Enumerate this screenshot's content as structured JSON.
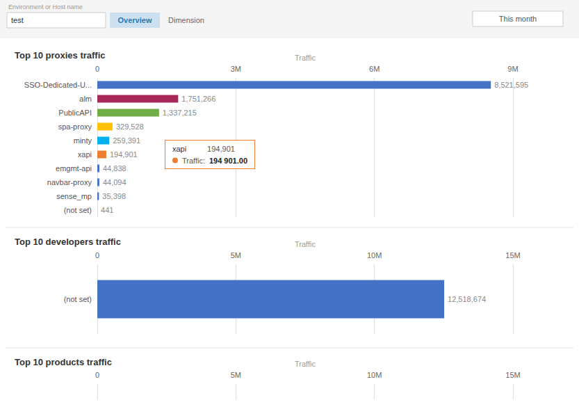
{
  "annotations": [
    "Environment or Host name",
    "test",
    "Overview",
    "Dimension",
    "This month"
  ],
  "chart_data": [
    {
      "type": "bar",
      "orientation": "horizontal",
      "title": "Top 10 proxies traffic",
      "xlabel": "Traffic",
      "categories": [
        "SSO-Dedicated-U...",
        "alm",
        "PublicAPI",
        "spa-proxy",
        "minty",
        "xapi",
        "emgmt-api",
        "navbar-proxy",
        "sense_mp",
        "(not set)"
      ],
      "values": [
        8521595,
        1751266,
        1337215,
        329528,
        259391,
        194901,
        44838,
        44094,
        35398,
        441
      ],
      "value_labels": [
        "8,521,595",
        "1,751,266",
        "1,337,215",
        "329,528",
        "259,391",
        "194,901",
        "44,838",
        "44,094",
        "35,398",
        "441"
      ],
      "data_labels": true,
      "colors": [
        "#4472c4",
        "#a8285a",
        "#70ad47",
        "#ffc000",
        "#00b0f0",
        "#ed7d31",
        "#4472c4",
        "#4472c4",
        "#4472c4",
        "#4472c4"
      ],
      "xlim": [
        0,
        9000000
      ],
      "xticks": [
        0,
        {
          "value": 3000000,
          "label": "3M"
        },
        {
          "value": 6000000,
          "label": "6M"
        },
        {
          "value": 9000000,
          "label": "9M"
        }
      ],
      "grid": true,
      "annotations": [
        {
          "category": "xapi",
          "texts": [
            "xapi",
            "194,901",
            "Traffic:",
            "194 901.00"
          ],
          "color": "#ed7d31"
        }
      ]
    },
    {
      "type": "bar",
      "orientation": "horizontal",
      "title": "Top 10 developers traffic",
      "xlabel": "Traffic",
      "categories": [
        "(not set)"
      ],
      "values": [
        12518674
      ],
      "value_labels": [
        "12,518,674"
      ],
      "data_labels": true,
      "colors": [
        "#4472c4"
      ],
      "xlim": [
        0,
        15000000
      ],
      "xticks": [
        0,
        {
          "value": 5000000,
          "label": "5M"
        },
        {
          "value": 10000000,
          "label": "10M"
        },
        {
          "value": 15000000,
          "label": "15M"
        }
      ],
      "grid": true
    },
    {
      "type": "bar",
      "orientation": "horizontal",
      "title": "Top 10 products traffic",
      "xlabel": "Traffic",
      "xlim": [
        0,
        15000000
      ],
      "xticks": [
        0,
        {
          "value": 5000000,
          "label": "5M"
        },
        {
          "value": 10000000,
          "label": "10M"
        },
        {
          "value": 15000000,
          "label": "15M"
        }
      ],
      "grid": true
    }
  ]
}
